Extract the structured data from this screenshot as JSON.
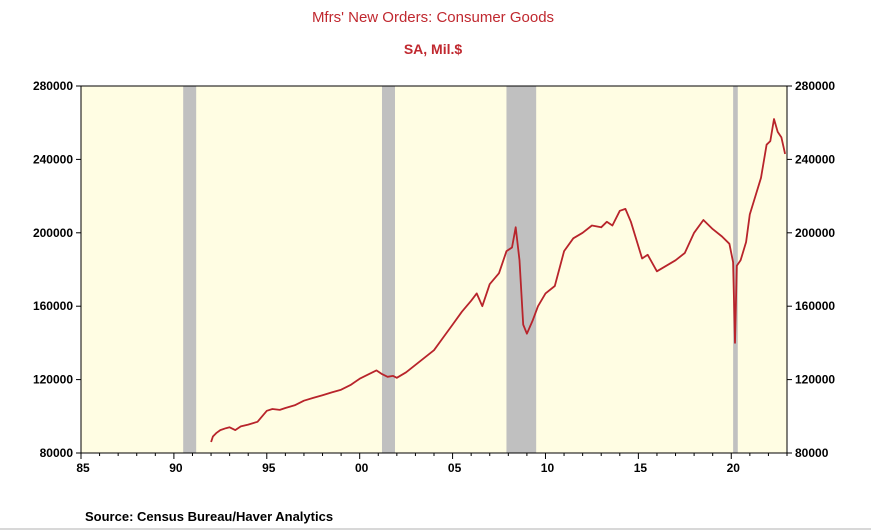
{
  "chart_data": {
    "type": "line",
    "title": "Mfrs' New Orders: Consumer Goods",
    "subtitle": "SA, Mil.$",
    "source": "Source:  Census Bureau/Haver Analytics",
    "xlim": [
      1985,
      2023
    ],
    "ylim": [
      80000,
      280000
    ],
    "x_tick_values": [
      1985,
      1990,
      1995,
      2000,
      2005,
      2010,
      2015,
      2020
    ],
    "x_tick_labels": [
      "85",
      "90",
      "95",
      "00",
      "05",
      "10",
      "15",
      "20"
    ],
    "y_ticks": [
      80000,
      120000,
      160000,
      200000,
      240000,
      280000
    ],
    "y_tick_labels": [
      "80000",
      "120000",
      "160000",
      "200000",
      "240000",
      "280000"
    ],
    "recessions": [
      [
        1990.5,
        1991.2
      ],
      [
        2001.2,
        2001.9
      ],
      [
        2007.9,
        2009.5
      ],
      [
        2020.1,
        2020.35
      ]
    ],
    "grid": false,
    "colors": {
      "line": "#b8242b",
      "plot_background": "#fffde3",
      "recession": "#c0c0c0",
      "title": "#c0282f"
    },
    "series": [
      {
        "x": [
          1992.0,
          1992.1,
          1992.3,
          1992.5,
          1992.8,
          1993.0,
          1993.3,
          1993.6,
          1994.0,
          1994.5,
          1995.0,
          1995.3,
          1995.7,
          1996.0,
          1996.5,
          1997.0,
          1997.5,
          1998.0,
          1998.5,
          1999.0,
          1999.5,
          2000.0,
          2000.5,
          2000.9,
          2001.2,
          2001.5,
          2001.8,
          2002.0,
          2002.5,
          2003.0,
          2003.5,
          2004.0,
          2004.5,
          2005.0,
          2005.5,
          2006.0,
          2006.3,
          2006.6,
          2007.0,
          2007.5,
          2007.9,
          2008.2,
          2008.4,
          2008.6,
          2008.8,
          2009.0,
          2009.3,
          2009.6,
          2010.0,
          2010.5,
          2011.0,
          2011.5,
          2012.0,
          2012.5,
          2013.0,
          2013.3,
          2013.6,
          2014.0,
          2014.3,
          2014.6,
          2014.9,
          2015.2,
          2015.5,
          2016.0,
          2016.5,
          2017.0,
          2017.5,
          2018.0,
          2018.5,
          2019.0,
          2019.5,
          2019.9,
          2020.1,
          2020.2,
          2020.3,
          2020.5,
          2020.8,
          2021.0,
          2021.3,
          2021.6,
          2021.9,
          2022.1,
          2022.3,
          2022.5,
          2022.7,
          2022.9
        ],
        "y": [
          86000,
          89000,
          91000,
          92500,
          93500,
          94000,
          92500,
          94500,
          95500,
          97000,
          103000,
          104000,
          103500,
          104500,
          106000,
          108500,
          110000,
          111500,
          113000,
          114500,
          117000,
          120500,
          123000,
          125000,
          123000,
          121500,
          122000,
          121000,
          124000,
          128000,
          132000,
          136000,
          143000,
          150000,
          157000,
          163000,
          167000,
          160000,
          172000,
          178000,
          190000,
          192000,
          203000,
          185000,
          150000,
          145000,
          152000,
          160000,
          167000,
          171000,
          190000,
          197000,
          200000,
          204000,
          203000,
          206000,
          204000,
          212000,
          213000,
          206000,
          196000,
          186000,
          188000,
          179000,
          182000,
          185000,
          189000,
          200000,
          207000,
          202000,
          198000,
          194000,
          184000,
          140000,
          182000,
          185000,
          195000,
          210000,
          220000,
          230000,
          248000,
          250000,
          262000,
          255000,
          252000,
          243000
        ]
      }
    ]
  }
}
